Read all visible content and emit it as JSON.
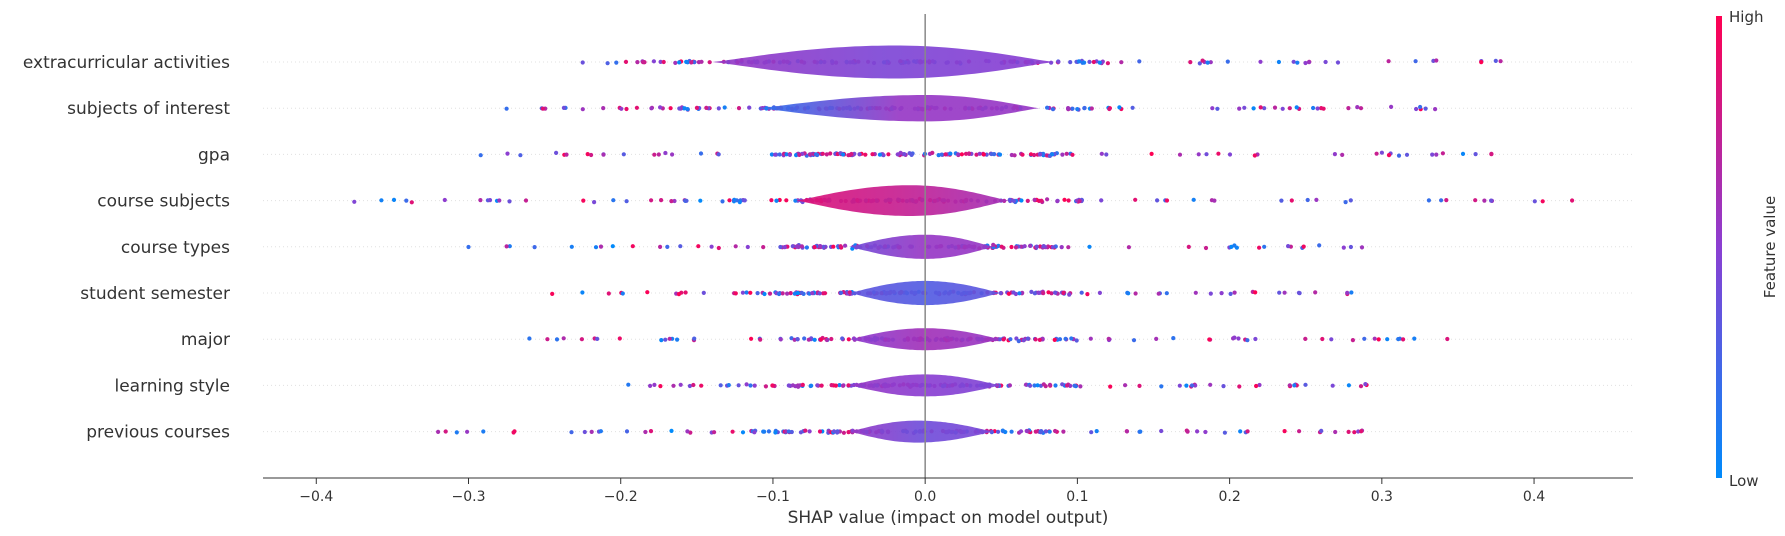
{
  "chart_data": {
    "type": "violin-beeswarm",
    "xlabel": "SHAP value (impact on model output)",
    "xlim": [
      -0.435,
      0.465
    ],
    "x_ticks": [
      -0.4,
      -0.3,
      -0.2,
      -0.1,
      0.0,
      0.1,
      0.2,
      0.3,
      0.4
    ],
    "x_tick_labels": [
      "−0.4",
      "−0.3",
      "−0.2",
      "−0.1",
      "0.0",
      "0.1",
      "0.2",
      "0.3",
      "0.4"
    ],
    "colorbar": {
      "label": "Feature value",
      "high_label": "High",
      "low_label": "Low",
      "low_color": "#008bfb",
      "high_color": "#ff0052"
    },
    "features": [
      {
        "name": "extracurricular activities",
        "min": -0.225,
        "max": 0.378,
        "width": 0.75,
        "core": [
          -0.14,
          0.085
        ],
        "peak": -0.02,
        "center_value": 0.45,
        "left_value": 0.55,
        "right_value": 0.5
      },
      {
        "name": "subjects of interest",
        "min": -0.275,
        "max": 0.335,
        "width": 0.6,
        "core": [
          -0.11,
          0.075
        ],
        "peak": 0.0,
        "center_value": 0.55,
        "left_value": 0.15,
        "right_value": 0.55
      },
      {
        "name": "gpa",
        "min": -0.292,
        "max": 0.372,
        "width": 0.02,
        "core": [
          -0.05,
          0.05
        ],
        "peak": 0.0,
        "center_value": 0.5,
        "left_value": 0.5,
        "right_value": 0.5
      },
      {
        "name": "course subjects",
        "min": -0.375,
        "max": 0.425,
        "width": 0.7,
        "core": [
          -0.085,
          0.055
        ],
        "peak": -0.01,
        "center_value": 0.75,
        "left_value": 0.85,
        "right_value": 0.6
      },
      {
        "name": "course types",
        "min": -0.3,
        "max": 0.287,
        "width": 0.55,
        "core": [
          -0.05,
          0.045
        ],
        "peak": 0.0,
        "center_value": 0.55,
        "left_value": 0.4,
        "right_value": 0.55
      },
      {
        "name": "student semester",
        "min": -0.245,
        "max": 0.28,
        "width": 0.55,
        "core": [
          -0.05,
          0.05
        ],
        "peak": 0.0,
        "center_value": 0.3,
        "left_value": 0.35,
        "right_value": 0.35
      },
      {
        "name": "major",
        "min": -0.26,
        "max": 0.343,
        "width": 0.5,
        "core": [
          -0.05,
          0.05
        ],
        "peak": 0.0,
        "center_value": 0.6,
        "left_value": 0.5,
        "right_value": 0.55
      },
      {
        "name": "learning style",
        "min": -0.195,
        "max": 0.29,
        "width": 0.5,
        "core": [
          -0.05,
          0.05
        ],
        "peak": 0.0,
        "center_value": 0.5,
        "left_value": 0.55,
        "right_value": 0.45
      },
      {
        "name": "previous courses",
        "min": -0.32,
        "max": 0.287,
        "width": 0.5,
        "core": [
          -0.05,
          0.045
        ],
        "peak": -0.005,
        "center_value": 0.4,
        "left_value": 0.55,
        "right_value": 0.45
      }
    ]
  }
}
